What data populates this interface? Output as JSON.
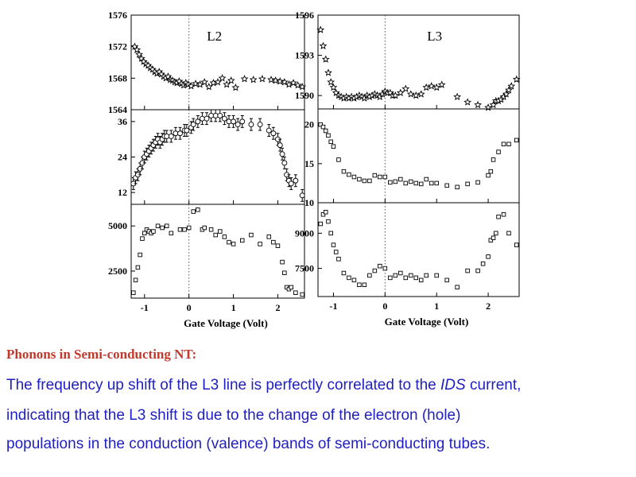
{
  "caption": {
    "title": "Phonons in Semi-conducting NT:",
    "line1_pre": "The frequency up shift of the L3 line is perfectly correlated to the ",
    "line1_em": "IDS",
    "line1_post": " current,",
    "line2": "indicating that the L3 shift is due to the change of the electron (hole)",
    "line3": "populations in the conduction (valence) bands of semi-conducting tubes."
  },
  "chart_data": [
    {
      "type": "scatter",
      "column": "left",
      "row": 1,
      "label": "L2",
      "xlabel": "Gate Voltage (Volt)",
      "xlim": [
        -1.3,
        2.6
      ],
      "xticks": [
        -1,
        0,
        1,
        2
      ],
      "ylim": [
        1564,
        1576
      ],
      "yticks": [
        1564,
        1568,
        1572,
        1576
      ],
      "marker": "star",
      "x": [
        -1.22,
        -1.17,
        -1.12,
        -1.07,
        -1.02,
        -0.97,
        -0.92,
        -0.87,
        -0.82,
        -0.77,
        -0.72,
        -0.67,
        -0.62,
        -0.57,
        -0.52,
        -0.47,
        -0.42,
        -0.37,
        -0.32,
        -0.27,
        -0.22,
        -0.17,
        -0.12,
        -0.07,
        -0.02,
        0.05,
        0.15,
        0.25,
        0.35,
        0.45,
        0.55,
        0.65,
        0.75,
        0.85,
        0.95,
        1.05,
        1.25,
        1.45,
        1.65,
        1.85,
        1.95,
        2.05,
        2.15,
        2.25,
        2.35,
        2.45,
        2.55
      ],
      "y": [
        1572.0,
        1571.6,
        1571.0,
        1570.5,
        1570.1,
        1569.8,
        1569.6,
        1569.3,
        1569.1,
        1568.8,
        1568.6,
        1568.8,
        1568.5,
        1568.2,
        1568.0,
        1568.2,
        1567.8,
        1567.7,
        1567.5,
        1567.4,
        1567.6,
        1567.3,
        1567.1,
        1567.4,
        1567.2,
        1567.0,
        1567.3,
        1567.2,
        1567.5,
        1566.9,
        1567.4,
        1567.5,
        1568.0,
        1567.2,
        1567.7,
        1566.8,
        1567.9,
        1567.8,
        1567.9,
        1567.8,
        1567.7,
        1567.6,
        1567.5,
        1567.2,
        1567.4,
        1567.1,
        1566.9
      ]
    },
    {
      "type": "scatter",
      "column": "left",
      "row": 2,
      "xlim": [
        -1.3,
        2.6
      ],
      "xticks": [
        -1,
        0,
        1,
        2
      ],
      "ylim": [
        8,
        40
      ],
      "yticks": [
        12,
        24,
        36
      ],
      "marker": "circle",
      "error_bars": true,
      "x": [
        -1.25,
        -1.2,
        -1.15,
        -1.1,
        -1.05,
        -1.0,
        -0.95,
        -0.9,
        -0.85,
        -0.8,
        -0.75,
        -0.7,
        -0.65,
        -0.6,
        -0.55,
        -0.5,
        -0.4,
        -0.3,
        -0.2,
        -0.1,
        -0.05,
        0.05,
        0.1,
        0.2,
        0.3,
        0.4,
        0.5,
        0.6,
        0.7,
        0.8,
        0.9,
        1.0,
        1.1,
        1.2,
        1.4,
        1.6,
        1.8,
        1.9,
        2.0,
        2.05,
        2.1,
        2.15,
        2.2,
        2.25,
        2.3,
        2.4,
        2.55
      ],
      "y": [
        15,
        17,
        18,
        20,
        22,
        24,
        25,
        26,
        27,
        28,
        29,
        30,
        29,
        30,
        31,
        31,
        31,
        32,
        32,
        33,
        33,
        34,
        35,
        36,
        37,
        37,
        38,
        38,
        38,
        37,
        36,
        36,
        35,
        36,
        35,
        35,
        33,
        32,
        30,
        28,
        25,
        22,
        18,
        16,
        15,
        16,
        11
      ],
      "err": [
        2,
        2,
        2,
        2,
        2,
        2,
        2,
        2,
        2,
        2,
        2,
        2,
        2,
        2,
        2,
        2,
        2,
        2,
        2,
        2,
        2,
        2,
        2,
        2,
        2,
        2,
        2,
        2,
        2,
        2,
        2,
        2,
        2,
        2,
        2,
        2,
        2,
        2,
        2,
        2,
        2,
        2,
        2,
        2,
        2,
        2,
        2
      ]
    },
    {
      "type": "scatter",
      "column": "left",
      "row": 3,
      "xlabel": "Gate Voltage (Volt)",
      "xlim": [
        -1.3,
        2.6
      ],
      "xticks": [
        -1,
        0,
        1,
        2
      ],
      "ylim": [
        1000,
        6200
      ],
      "yticks": [
        2500,
        5000
      ],
      "marker": "square",
      "x": [
        -1.25,
        -1.2,
        -1.15,
        -1.1,
        -1.05,
        -1.0,
        -0.95,
        -0.9,
        -0.85,
        -0.8,
        -0.7,
        -0.6,
        -0.5,
        -0.4,
        -0.2,
        -0.1,
        0.0,
        0.1,
        0.2,
        0.3,
        0.35,
        0.5,
        0.6,
        0.7,
        0.8,
        0.9,
        1.0,
        1.2,
        1.4,
        1.6,
        1.8,
        1.9,
        2.0,
        2.1,
        2.15,
        2.2,
        2.25,
        2.3,
        2.4,
        2.55
      ],
      "y": [
        1300,
        2000,
        2700,
        3400,
        4300,
        4600,
        4800,
        4700,
        4600,
        4700,
        5000,
        4900,
        5000,
        4600,
        4800,
        4800,
        4900,
        5800,
        5900,
        4800,
        4900,
        4800,
        4500,
        4700,
        4400,
        4100,
        4000,
        4200,
        4500,
        4000,
        4400,
        4100,
        3900,
        3000,
        2400,
        1600,
        1500,
        1600,
        1300,
        1200
      ]
    },
    {
      "type": "scatter",
      "column": "right",
      "row": 1,
      "label": "L3",
      "xlabel": "Gate Voltage (Volt)",
      "xlim": [
        -1.3,
        2.6
      ],
      "xticks": [
        -1,
        0,
        1,
        2
      ],
      "ylim": [
        1589,
        1596
      ],
      "yticks": [
        1590,
        1593,
        1596
      ],
      "marker": "star",
      "x": [
        -1.25,
        -1.2,
        -1.15,
        -1.1,
        -1.05,
        -1.0,
        -0.95,
        -0.9,
        -0.85,
        -0.8,
        -0.75,
        -0.7,
        -0.65,
        -0.6,
        -0.55,
        -0.5,
        -0.45,
        -0.4,
        -0.35,
        -0.3,
        -0.25,
        -0.2,
        -0.15,
        -0.1,
        -0.05,
        0.0,
        0.05,
        0.1,
        0.15,
        0.2,
        0.3,
        0.4,
        0.5,
        0.6,
        0.7,
        0.8,
        0.9,
        1.0,
        1.1,
        1.4,
        1.6,
        1.8,
        2.0,
        2.1,
        2.15,
        2.2,
        2.25,
        2.3,
        2.35,
        2.4,
        2.45,
        2.55
      ],
      "y": [
        1594.9,
        1593.7,
        1592.7,
        1591.7,
        1591.0,
        1590.6,
        1590.2,
        1590.0,
        1589.9,
        1589.8,
        1589.9,
        1589.8,
        1589.9,
        1589.8,
        1589.9,
        1590.0,
        1589.9,
        1589.8,
        1590.0,
        1589.9,
        1590.0,
        1590.1,
        1590.0,
        1589.9,
        1590.1,
        1590.3,
        1590.2,
        1590.2,
        1590.0,
        1590.0,
        1590.2,
        1590.5,
        1590.1,
        1590.0,
        1590.1,
        1590.6,
        1590.7,
        1590.6,
        1590.8,
        1589.9,
        1589.5,
        1589.3,
        1589.1,
        1589.3,
        1589.6,
        1589.6,
        1589.7,
        1589.9,
        1590.1,
        1590.4,
        1590.7,
        1591.2
      ]
    },
    {
      "type": "scatter",
      "column": "right",
      "row": 2,
      "xlim": [
        -1.3,
        2.6
      ],
      "xticks": [
        -1,
        0,
        1,
        2
      ],
      "ylim": [
        10,
        22
      ],
      "yticks": [
        10,
        15,
        20
      ],
      "marker": "square",
      "x": [
        -1.25,
        -1.2,
        -1.15,
        -1.1,
        -1.05,
        -1.0,
        -0.9,
        -0.8,
        -0.7,
        -0.6,
        -0.5,
        -0.4,
        -0.3,
        -0.2,
        -0.1,
        0.0,
        0.1,
        0.2,
        0.3,
        0.4,
        0.5,
        0.6,
        0.7,
        0.8,
        0.9,
        1.0,
        1.2,
        1.4,
        1.6,
        1.8,
        2.0,
        2.05,
        2.1,
        2.2,
        2.3,
        2.4,
        2.55
      ],
      "y": [
        20,
        19.7,
        19.2,
        18.6,
        17.8,
        17.2,
        15.5,
        14,
        13.6,
        13.3,
        13.0,
        12.8,
        12.8,
        13.5,
        13.3,
        13.3,
        12.6,
        12.7,
        13.0,
        12.5,
        12.7,
        12.5,
        12.4,
        13.0,
        12.5,
        12.5,
        12.2,
        12.0,
        12.4,
        12.6,
        13.5,
        14.0,
        15.5,
        16.5,
        17.5,
        17.5,
        18
      ]
    },
    {
      "type": "scatter",
      "column": "right",
      "row": 3,
      "xlabel": "Gate Voltage (Volt)",
      "xlim": [
        -1.3,
        2.6
      ],
      "xticks": [
        -1,
        0,
        1,
        2
      ],
      "ylim": [
        6300,
        10300
      ],
      "yticks": [
        7500,
        9000
      ],
      "marker": "square",
      "x": [
        -1.25,
        -1.2,
        -1.15,
        -1.1,
        -1.05,
        -1.0,
        -0.95,
        -0.9,
        -0.8,
        -0.7,
        -0.6,
        -0.5,
        -0.4,
        -0.3,
        -0.2,
        -0.1,
        0.0,
        0.1,
        0.2,
        0.3,
        0.4,
        0.5,
        0.6,
        0.7,
        0.8,
        1.0,
        1.2,
        1.4,
        1.6,
        1.8,
        1.9,
        2.0,
        2.05,
        2.1,
        2.15,
        2.2,
        2.3,
        2.4,
        2.55
      ],
      "y": [
        9400,
        9800,
        9900,
        9500,
        9000,
        8500,
        8200,
        7900,
        7300,
        7100,
        7000,
        6800,
        6800,
        7200,
        7400,
        7600,
        7500,
        7100,
        7200,
        7300,
        7100,
        7200,
        7100,
        7000,
        7200,
        7200,
        7000,
        6700,
        7400,
        7400,
        7700,
        8000,
        8700,
        8800,
        9000,
        9700,
        9800,
        9000,
        8500
      ]
    }
  ]
}
